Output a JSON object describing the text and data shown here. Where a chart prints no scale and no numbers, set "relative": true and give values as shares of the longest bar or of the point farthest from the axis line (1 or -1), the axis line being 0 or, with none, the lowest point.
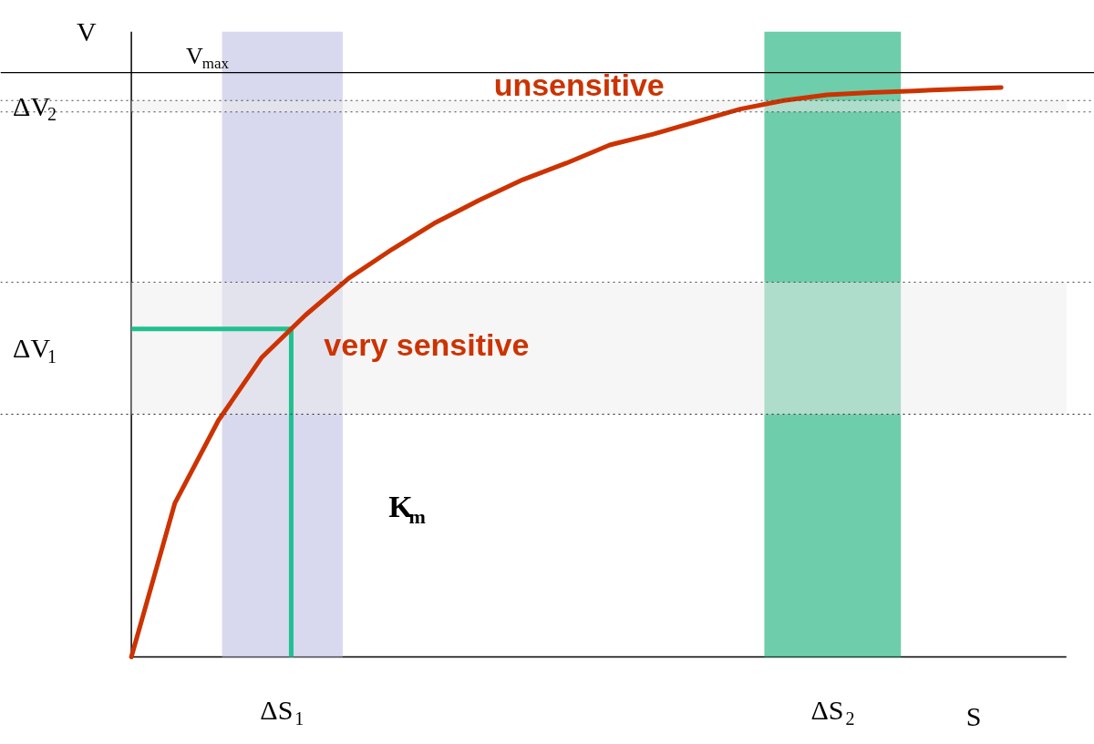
{
  "chart_data": {
    "type": "line",
    "relative": true,
    "xlabel": "S",
    "ylabel": "V",
    "grid": false,
    "line_style": "solid",
    "categories": [
      null,
      null,
      null,
      null,
      null,
      null,
      null,
      null,
      null,
      null,
      null,
      null,
      null,
      null,
      null,
      null,
      null,
      null,
      null,
      null,
      null
    ],
    "series": [
      {
        "color": "#cc3300",
        "values": [
          0,
          0.27,
          0.415,
          0.526,
          0.6,
          0.665,
          0.716,
          0.763,
          0.802,
          0.838,
          0.867,
          0.899,
          0.918,
          0.94,
          0.962,
          0.977,
          0.987,
          0.991,
          0.994,
          0.997,
          1
        ]
      }
    ],
    "ref_lines": [
      {
        "axis": "y",
        "value": 1.026,
        "label": "V$_{max}$",
        "color": "#000000"
      },
      {
        "axis": "y",
        "value": 0.576,
        "label": null,
        "color": "#20c090"
      }
    ],
    "bands": [
      {
        "axis": "y",
        "from": 0.426,
        "to": 0.658,
        "label": "ΔV$_{1}$",
        "color": "#eeeeee"
      },
      {
        "axis": "y",
        "from": 0.957,
        "to": 0.977,
        "label": "ΔV$_{2}$",
        "color": "#eeeeee"
      }
    ],
    "annotations": [
      "unsensitive",
      "very sensitive",
      "K$_{m}$",
      "ΔS$_{1}$",
      "ΔS$_{2}$"
    ]
  }
}
